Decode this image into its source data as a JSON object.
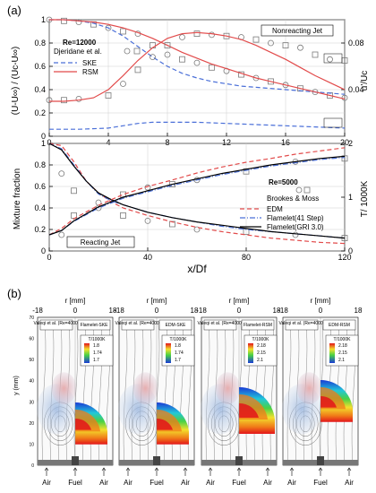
{
  "panel_labels": {
    "a": "(a)",
    "b": "(b)"
  },
  "chart_data": [
    {
      "type": "line",
      "id": "nonreacting",
      "annotation": "Nonreacting Jet",
      "re_label": "Re=12000",
      "ylabel_left": "(U-U∞) / (Uc-U∞)",
      "ylabel_right": "u'/Uc",
      "xlim": [
        0,
        20
      ],
      "xticks": [
        0,
        4,
        8,
        12,
        16,
        20
      ],
      "ylim_left": [
        0,
        1
      ],
      "yticks_left": [
        0,
        0.2,
        0.4,
        0.6,
        0.8,
        1
      ],
      "ylim_right": [
        0,
        0.1
      ],
      "yticks_right": [
        0.04,
        0.08
      ],
      "legend": [
        {
          "name": "Djeridane et al.",
          "style": "markers",
          "color": "#7a7a7a"
        },
        {
          "name": "SKE",
          "style": "dashed",
          "color": "#4a6fd8"
        },
        {
          "name": "RSM",
          "style": "solid",
          "color": "#e24b4b"
        }
      ],
      "series": [
        {
          "name": "Djeridane et al.",
          "axis": "left",
          "x": [
            0,
            1,
            2,
            3,
            4,
            5,
            6,
            7,
            8,
            9,
            10,
            11,
            12,
            13,
            14,
            15,
            16,
            17,
            18,
            19,
            20
          ],
          "y": [
            1.0,
            0.99,
            0.98,
            0.96,
            0.93,
            0.9,
            0.88,
            0.78,
            0.7,
            0.66,
            0.63,
            0.59,
            0.56,
            0.53,
            0.5,
            0.47,
            0.44,
            0.41,
            0.38,
            0.35,
            0.33
          ]
        },
        {
          "name": "SKE",
          "axis": "left",
          "x": [
            0,
            1,
            2,
            3,
            4,
            5,
            6,
            7,
            8,
            9,
            10,
            11,
            12,
            13,
            14,
            15,
            16,
            17,
            18,
            19,
            20
          ],
          "y": [
            1.0,
            1.0,
            0.99,
            0.97,
            0.93,
            0.86,
            0.77,
            0.68,
            0.6,
            0.54,
            0.5,
            0.47,
            0.45,
            0.43,
            0.42,
            0.41,
            0.4,
            0.39,
            0.38,
            0.37,
            0.36
          ]
        },
        {
          "name": "RSM",
          "axis": "left",
          "x": [
            0,
            1,
            2,
            3,
            4,
            5,
            6,
            7,
            8,
            9,
            10,
            11,
            12,
            13,
            14,
            15,
            16,
            17,
            18,
            19,
            20
          ],
          "y": [
            1.0,
            1.0,
            0.99,
            0.98,
            0.96,
            0.93,
            0.89,
            0.84,
            0.78,
            0.72,
            0.67,
            0.62,
            0.58,
            0.54,
            0.5,
            0.47,
            0.44,
            0.41,
            0.38,
            0.35,
            0.32
          ]
        },
        {
          "name": "Djeridane et al.",
          "axis": "right",
          "x": [
            0,
            1,
            2,
            4,
            5,
            6,
            7,
            8,
            9,
            10,
            11,
            12,
            13,
            14,
            15,
            16,
            17,
            18,
            19,
            20
          ],
          "y": [
            0.031,
            0.031,
            0.032,
            0.035,
            0.045,
            0.057,
            0.068,
            0.078,
            0.085,
            0.088,
            0.087,
            0.086,
            0.085,
            0.083,
            0.08,
            0.078,
            0.076,
            0.07,
            0.066,
            0.065
          ]
        },
        {
          "name": "SKE",
          "axis": "right",
          "x": [
            0,
            2,
            4,
            5,
            6,
            7,
            8,
            9,
            10,
            12,
            14,
            16,
            18,
            20
          ],
          "y": [
            0.006,
            0.006,
            0.007,
            0.009,
            0.011,
            0.012,
            0.012,
            0.012,
            0.012,
            0.011,
            0.01,
            0.009,
            0.008,
            0.007
          ]
        },
        {
          "name": "RSM",
          "axis": "right",
          "x": [
            0,
            1,
            2,
            3,
            4,
            5,
            6,
            7,
            8,
            9,
            10,
            11,
            12,
            13,
            14,
            15,
            16,
            17,
            18,
            19,
            20
          ],
          "y": [
            0.03,
            0.03,
            0.031,
            0.033,
            0.04,
            0.052,
            0.065,
            0.076,
            0.084,
            0.088,
            0.089,
            0.088,
            0.086,
            0.083,
            0.078,
            0.072,
            0.066,
            0.059,
            0.052,
            0.046,
            0.04
          ]
        }
      ]
    },
    {
      "type": "line",
      "id": "reacting",
      "annotation": "Reacting Jet",
      "re_label": "Re=5000",
      "xlabel": "x/Df",
      "ylabel_left": "Mixture fraction",
      "ylabel_right": "T/ 1000K",
      "xlim": [
        0,
        120
      ],
      "xticks": [
        0,
        40,
        80,
        120
      ],
      "ylim_left": [
        0,
        1
      ],
      "yticks_left": [
        0,
        0.2,
        0.4,
        0.6,
        0.8,
        1
      ],
      "ylim_right": [
        0,
        2
      ],
      "yticks_right": [
        0,
        1,
        2
      ],
      "legend": [
        {
          "name": "Brookes & Moss",
          "style": "markers",
          "color": "#7a7a7a"
        },
        {
          "name": "EDM",
          "style": "dashed",
          "color": "#e24b4b"
        },
        {
          "name": "Flamelet(41 Step)",
          "style": "dashdot",
          "color": "#4a6fd8"
        },
        {
          "name": "Flamelet(GRI 3.0)",
          "style": "solid",
          "color": "#000000"
        }
      ],
      "series": [
        {
          "name": "Brookes & Moss",
          "axis": "left",
          "x": [
            5,
            10,
            20,
            30,
            40,
            50,
            60,
            80,
            100,
            120
          ],
          "y": [
            0.72,
            0.56,
            0.4,
            0.33,
            0.28,
            0.25,
            0.2,
            0.18,
            0.15,
            0.12
          ]
        },
        {
          "name": "EDM",
          "axis": "left",
          "x": [
            0,
            5,
            10,
            15,
            20,
            25,
            30,
            40,
            50,
            60,
            70,
            80,
            90,
            100,
            110,
            120
          ],
          "y": [
            1.0,
            0.98,
            0.83,
            0.65,
            0.54,
            0.46,
            0.4,
            0.33,
            0.27,
            0.22,
            0.18,
            0.15,
            0.12,
            0.1,
            0.08,
            0.07
          ]
        },
        {
          "name": "Flamelet(41 Step)",
          "axis": "left",
          "x": [
            0,
            5,
            10,
            15,
            20,
            25,
            30,
            40,
            50,
            60,
            70,
            80,
            90,
            100,
            110,
            120
          ],
          "y": [
            1.0,
            0.95,
            0.8,
            0.65,
            0.53,
            0.47,
            0.43,
            0.36,
            0.31,
            0.27,
            0.23,
            0.2,
            0.18,
            0.16,
            0.14,
            0.12
          ]
        },
        {
          "name": "Flamelet(GRI 3.0)",
          "axis": "left",
          "x": [
            0,
            5,
            10,
            15,
            20,
            25,
            30,
            40,
            50,
            60,
            70,
            80,
            90,
            100,
            110,
            120
          ],
          "y": [
            1.0,
            0.94,
            0.79,
            0.65,
            0.54,
            0.48,
            0.43,
            0.36,
            0.31,
            0.27,
            0.24,
            0.21,
            0.18,
            0.16,
            0.14,
            0.12
          ]
        },
        {
          "name": "Brookes & Moss",
          "axis": "right",
          "x": [
            5,
            10,
            20,
            30,
            40,
            50,
            60,
            80,
            100,
            120
          ],
          "y": [
            0.3,
            0.66,
            0.9,
            1.05,
            1.18,
            1.24,
            1.32,
            1.48,
            1.66,
            1.72
          ]
        },
        {
          "name": "EDM",
          "axis": "right",
          "x": [
            0,
            5,
            10,
            20,
            30,
            40,
            50,
            60,
            70,
            80,
            90,
            100,
            110,
            120
          ],
          "y": [
            0.3,
            0.42,
            0.6,
            0.85,
            1.05,
            1.2,
            1.32,
            1.45,
            1.56,
            1.65,
            1.72,
            1.8,
            1.86,
            1.92
          ]
        },
        {
          "name": "Flamelet(41 Step)",
          "axis": "right",
          "x": [
            0,
            5,
            10,
            20,
            30,
            40,
            50,
            60,
            70,
            80,
            90,
            100,
            110,
            120
          ],
          "y": [
            0.3,
            0.38,
            0.55,
            0.8,
            0.98,
            1.1,
            1.22,
            1.32,
            1.42,
            1.5,
            1.58,
            1.64,
            1.7,
            1.74
          ]
        },
        {
          "name": "Flamelet(GRI 3.0)",
          "axis": "right",
          "x": [
            0,
            5,
            10,
            20,
            30,
            40,
            50,
            60,
            70,
            80,
            90,
            100,
            110,
            120
          ],
          "y": [
            0.3,
            0.38,
            0.56,
            0.82,
            1.0,
            1.12,
            1.24,
            1.34,
            1.44,
            1.52,
            1.6,
            1.66,
            1.72,
            1.76
          ]
        }
      ]
    }
  ],
  "panel_b": {
    "r_label": "r [mm]",
    "y_label": "y (mm)",
    "r_ticks": [
      "-18",
      "0",
      "18"
    ],
    "y_ticks": [
      "70",
      "60",
      "50",
      "40",
      "30",
      "20",
      "10",
      "0"
    ],
    "bottom_labels": [
      "Air",
      "Fuel",
      "Air"
    ],
    "legend_title": "T/1000K",
    "panels": [
      {
        "left_tag": "Valeqi et al. (Re=4000)",
        "right_tag": "Flamelet-SKE",
        "legend_values": [
          "1.8",
          "1.74",
          "1.7"
        ]
      },
      {
        "left_tag": "Valeqi et al. (Re=4000)",
        "right_tag": "EDM-SKE",
        "legend_values": [
          "1.8",
          "1.74",
          "1.7"
        ]
      },
      {
        "left_tag": "Valeqi et al. (Re=4000)",
        "right_tag": "Flamelet-RSM",
        "legend_values": [
          "2.18",
          "2.15",
          "2.1"
        ]
      },
      {
        "left_tag": "Valeqi et al. (Re=4000)",
        "right_tag": "EDM-RSM",
        "legend_values": [
          "2.18",
          "2.15",
          "2.1"
        ]
      }
    ]
  }
}
